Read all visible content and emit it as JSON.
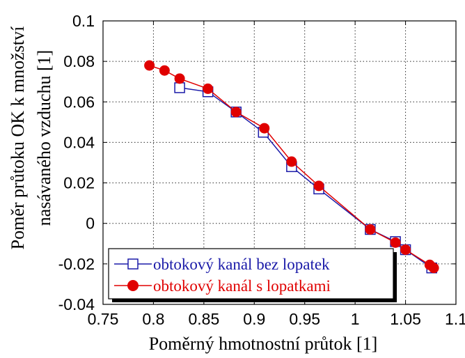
{
  "chart_data": {
    "type": "line",
    "title": "",
    "xlabel": "Poměrný hmotnostní průtok [1]",
    "ylabel_line1": "Poměr průtoku OK k množství",
    "ylabel_line2": "nasávaného vzduchu [1]",
    "xlim": [
      0.75,
      1.1
    ],
    "ylim": [
      -0.04,
      0.1
    ],
    "xticks": [
      "0.75",
      "0.8",
      "0.85",
      "0.9",
      "0.95",
      "1",
      "1.05",
      "1.1"
    ],
    "yticks": [
      "0.1",
      "0.08",
      "0.06",
      "0.04",
      "0.02",
      "0",
      "-0.02",
      "-0.04"
    ],
    "grid": true,
    "legend_position": "bottom-left",
    "series": [
      {
        "name": "obtokový kanál bez lopatek",
        "color": "#1a1aa8",
        "marker": "square",
        "x": [
          0.826,
          0.854,
          0.882,
          0.909,
          0.937,
          0.964,
          1.015,
          1.04,
          1.05,
          1.076
        ],
        "y": [
          0.067,
          0.065,
          0.055,
          0.045,
          0.028,
          0.017,
          -0.003,
          -0.009,
          -0.013,
          -0.022
        ]
      },
      {
        "name": "obtokový kanál s lopatkami",
        "color": "#e00000",
        "marker": "circle",
        "x": [
          0.796,
          0.811,
          0.826,
          0.854,
          0.882,
          0.91,
          0.937,
          0.964,
          1.015,
          1.04,
          1.05,
          1.074,
          1.078
        ],
        "y": [
          0.078,
          0.0755,
          0.0715,
          0.0665,
          0.055,
          0.047,
          0.0305,
          0.0185,
          -0.003,
          -0.0095,
          -0.013,
          -0.0205,
          -0.022
        ]
      }
    ]
  }
}
